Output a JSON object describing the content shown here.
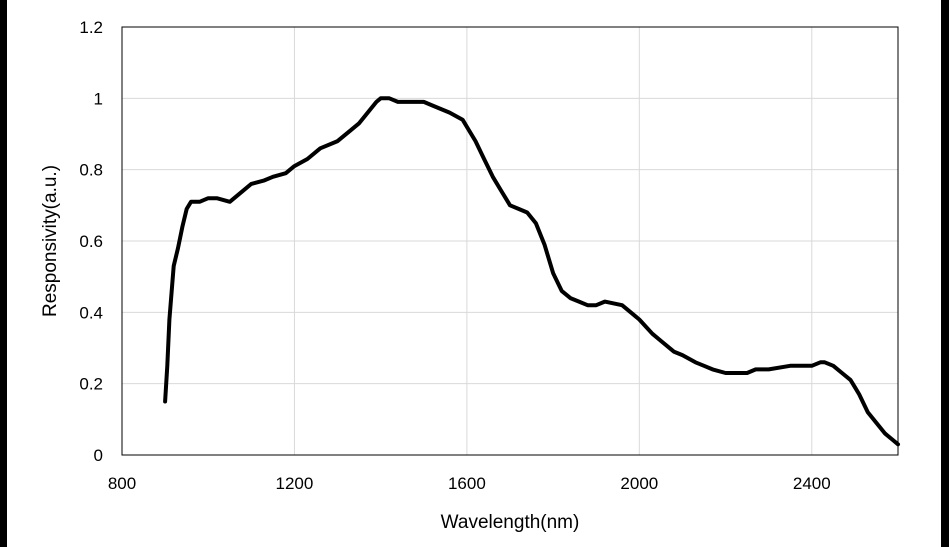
{
  "chart_data": {
    "type": "line",
    "title": "",
    "xlabel": "Wavelength(nm)",
    "ylabel": "Responsivity(a.u.)",
    "xlim": [
      800,
      2600
    ],
    "ylim": [
      0,
      1.2
    ],
    "x_ticks": [
      800,
      1200,
      1600,
      2000,
      2400
    ],
    "x_tick_labels": [
      "800",
      "1200",
      "1600",
      "2000",
      "2400"
    ],
    "y_ticks": [
      0,
      0.2,
      0.4,
      0.6,
      0.8,
      1.0,
      1.2
    ],
    "y_tick_labels": [
      "0",
      "0.2",
      "0.4",
      "0.6",
      "0.8",
      "1",
      "1.2"
    ],
    "grid": true,
    "legend": "none",
    "line_color": "#000000",
    "series": [
      {
        "x": [
          900,
          905,
          910,
          920,
          930,
          940,
          950,
          960,
          980,
          1000,
          1020,
          1050,
          1080,
          1100,
          1130,
          1150,
          1180,
          1200,
          1230,
          1260,
          1300,
          1330,
          1350,
          1370,
          1390,
          1400,
          1420,
          1440,
          1460,
          1500,
          1520,
          1560,
          1590,
          1600,
          1620,
          1640,
          1660,
          1680,
          1700,
          1720,
          1740,
          1760,
          1780,
          1800,
          1820,
          1840,
          1860,
          1880,
          1900,
          1920,
          1960,
          1980,
          2000,
          2030,
          2050,
          2080,
          2100,
          2130,
          2150,
          2170,
          2200,
          2250,
          2270,
          2300,
          2350,
          2380,
          2400,
          2420,
          2430,
          2450,
          2470,
          2490,
          2500,
          2510,
          2530,
          2550,
          2570,
          2600
        ],
        "y": [
          0.15,
          0.25,
          0.38,
          0.53,
          0.58,
          0.64,
          0.69,
          0.71,
          0.71,
          0.72,
          0.72,
          0.71,
          0.74,
          0.76,
          0.77,
          0.78,
          0.79,
          0.81,
          0.83,
          0.86,
          0.88,
          0.91,
          0.93,
          0.96,
          0.99,
          1.0,
          1.0,
          0.99,
          0.99,
          0.99,
          0.98,
          0.96,
          0.94,
          0.92,
          0.88,
          0.83,
          0.78,
          0.74,
          0.7,
          0.69,
          0.68,
          0.65,
          0.59,
          0.51,
          0.46,
          0.44,
          0.43,
          0.42,
          0.42,
          0.43,
          0.42,
          0.4,
          0.38,
          0.34,
          0.32,
          0.29,
          0.28,
          0.26,
          0.25,
          0.24,
          0.23,
          0.23,
          0.24,
          0.24,
          0.25,
          0.25,
          0.25,
          0.26,
          0.26,
          0.25,
          0.23,
          0.21,
          0.19,
          0.17,
          0.12,
          0.09,
          0.06,
          0.03
        ]
      }
    ]
  }
}
